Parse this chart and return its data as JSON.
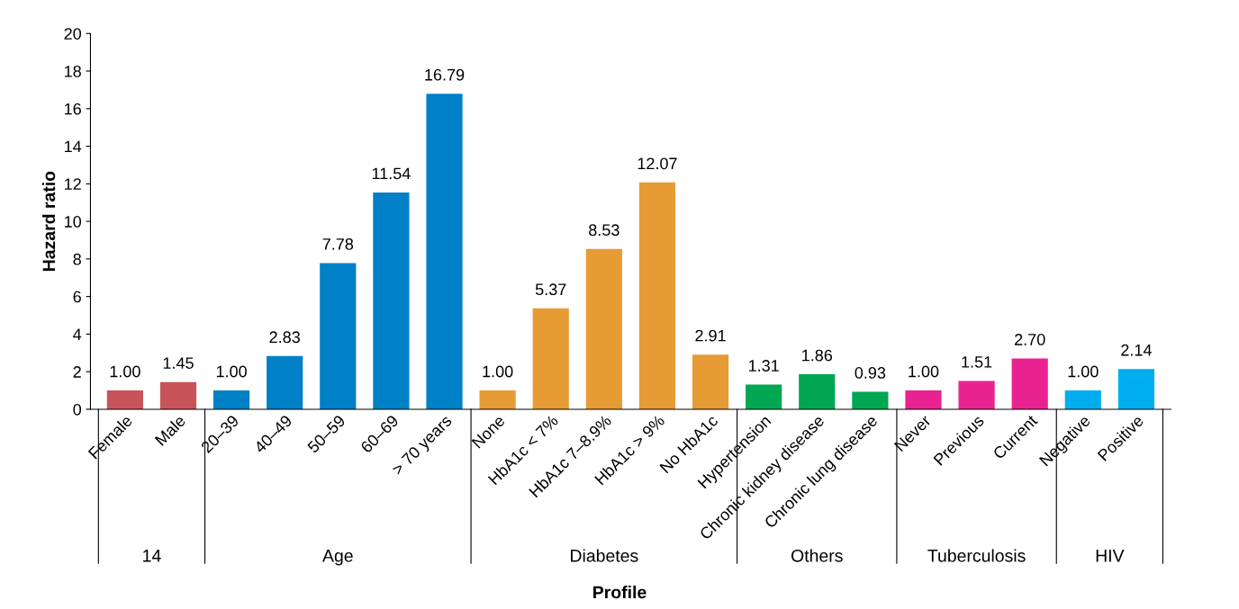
{
  "chart_data": {
    "type": "bar",
    "xlabel": "Profile",
    "ylabel": "Hazard ratio",
    "categories": [
      "Female",
      "Male",
      "20–39",
      "40–49",
      "50–59",
      "60–69",
      "> 70 years",
      "None",
      "HbA1c < 7%",
      "HbA1c 7–8.9%",
      "HbA1c > 9%",
      "No HbA1c",
      "Hypertension",
      "Chronic kidney disease",
      "Chronic lung disease",
      "Never",
      "Previous",
      "Current",
      "Negative",
      "Positive"
    ],
    "values": [
      1.0,
      1.45,
      1.0,
      2.83,
      7.78,
      11.54,
      16.79,
      1.0,
      5.37,
      8.53,
      12.07,
      2.91,
      1.31,
      1.86,
      0.93,
      1.0,
      1.51,
      2.7,
      1.0,
      2.14
    ],
    "value_labels": [
      "1.00",
      "1.45",
      "1.00",
      "2.83",
      "7.78",
      "11.54",
      "16.79",
      "1.00",
      "5.37",
      "8.53",
      "12.07",
      "2.91",
      "1.31",
      "1.86",
      "0.93",
      "1.00",
      "1.51",
      "2.70",
      "1.00",
      "2.14"
    ],
    "colors": [
      "#c8545a",
      "#c8545a",
      "#0080c6",
      "#0080c6",
      "#0080c6",
      "#0080c6",
      "#0080c6",
      "#e69b35",
      "#e69b35",
      "#e69b35",
      "#e69b35",
      "#e69b35",
      "#00a651",
      "#00a651",
      "#00a651",
      "#e8238f",
      "#e8238f",
      "#e8238f",
      "#00aeef",
      "#00aeef"
    ],
    "ylim": [
      0,
      20
    ],
    "yticks": [
      0,
      2,
      4,
      6,
      8,
      10,
      12,
      14,
      16,
      18,
      20
    ],
    "grid": false,
    "legend": false,
    "annotations": [
      "14",
      "Age",
      "Diabetes",
      "Others",
      "Tuberculosis",
      "HIV"
    ]
  }
}
